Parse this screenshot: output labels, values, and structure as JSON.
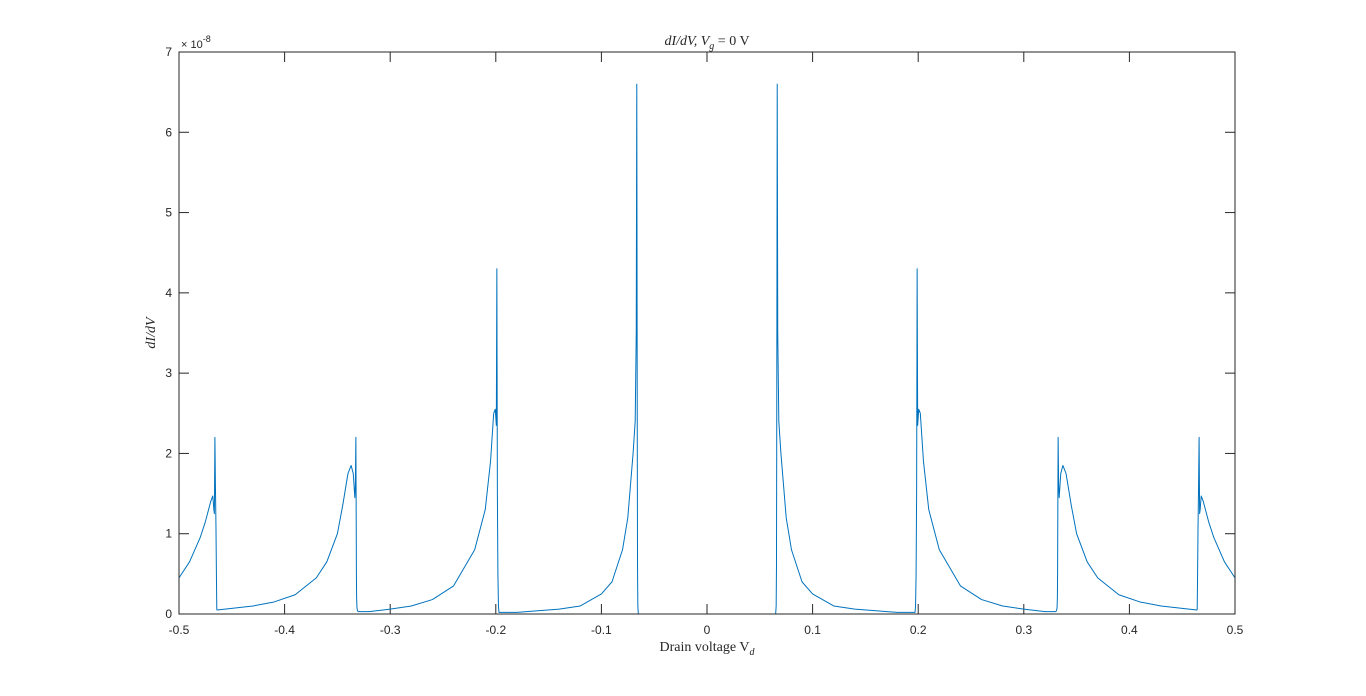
{
  "chart_data": {
    "type": "line",
    "title_parts": {
      "main": "dI/dV, V",
      "sub": "g",
      "tail": " = 0 V"
    },
    "xlabel_parts": {
      "main": "Drain voltage V",
      "sub": "d"
    },
    "ylabel": "dI/dV",
    "y_exponent_label": {
      "base": "× 10",
      "power": "-8"
    },
    "xlim": [
      -0.5,
      0.5
    ],
    "ylim": [
      0,
      7
    ],
    "y_scale_factor": 1e-08,
    "xticks": [
      -0.5,
      -0.4,
      -0.3,
      -0.2,
      -0.1,
      0,
      0.1,
      0.2,
      0.3,
      0.4,
      0.5
    ],
    "xtick_labels": [
      "-0.5",
      "-0.4",
      "-0.3",
      "-0.2",
      "-0.1",
      "0",
      "0.1",
      "0.2",
      "0.3",
      "0.4",
      "0.5"
    ],
    "yticks": [
      0,
      1,
      2,
      3,
      4,
      5,
      6,
      7
    ],
    "ytick_labels": [
      "0",
      "1",
      "2",
      "3",
      "4",
      "5",
      "6",
      "7"
    ],
    "grid": false,
    "box": true,
    "line_color": "#0072bd",
    "series": [
      {
        "x": [
          -0.5,
          -0.49,
          -0.48,
          -0.475,
          -0.47,
          -0.468,
          -0.467,
          -0.4665,
          -0.466,
          -0.4655,
          -0.465,
          -0.4645,
          -0.4642,
          -0.464,
          -0.45,
          -0.43,
          -0.41,
          -0.39,
          -0.37,
          -0.36,
          -0.35,
          -0.345,
          -0.34,
          -0.337,
          -0.335,
          -0.3335,
          -0.333,
          -0.3325,
          -0.3322,
          -0.332,
          -0.3318,
          -0.3315,
          -0.331,
          -0.33,
          -0.32,
          -0.3,
          -0.28,
          -0.26,
          -0.24,
          -0.22,
          -0.21,
          -0.205,
          -0.202,
          -0.2005,
          -0.1995,
          -0.199,
          -0.1985,
          -0.198,
          -0.1975,
          -0.197,
          -0.18,
          -0.16,
          -0.14,
          -0.12,
          -0.1,
          -0.09,
          -0.08,
          -0.075,
          -0.07,
          -0.068,
          -0.067,
          -0.0665,
          -0.066,
          -0.0658,
          -0.0655,
          -0.065,
          0,
          0.065,
          0.0655,
          0.0658,
          0.066,
          0.0665,
          0.067,
          0.068,
          0.07,
          0.075,
          0.08,
          0.09,
          0.1,
          0.12,
          0.14,
          0.16,
          0.18,
          0.197,
          0.1975,
          0.198,
          0.1985,
          0.199,
          0.1995,
          0.2005,
          0.202,
          0.205,
          0.21,
          0.22,
          0.24,
          0.26,
          0.28,
          0.3,
          0.32,
          0.33,
          0.331,
          0.3315,
          0.3318,
          0.332,
          0.3322,
          0.3325,
          0.333,
          0.3335,
          0.335,
          0.337,
          0.34,
          0.345,
          0.35,
          0.36,
          0.37,
          0.39,
          0.41,
          0.43,
          0.45,
          0.464,
          0.4642,
          0.4645,
          0.465,
          0.4655,
          0.466,
          0.4665,
          0.467,
          0.468,
          0.47,
          0.475,
          0.48,
          0.49,
          0.5
        ],
        "y": [
          0.45,
          0.65,
          0.95,
          1.15,
          1.4,
          1.47,
          1.3,
          1.25,
          2.2,
          1.6,
          1.1,
          0.4,
          0.06,
          0.05,
          0.07,
          0.1,
          0.15,
          0.24,
          0.45,
          0.65,
          1.0,
          1.35,
          1.75,
          1.85,
          1.75,
          1.45,
          1.6,
          2.2,
          1.2,
          0.5,
          0.2,
          0.08,
          0.04,
          0.03,
          0.03,
          0.06,
          0.1,
          0.18,
          0.35,
          0.8,
          1.3,
          1.9,
          2.5,
          2.55,
          2.35,
          4.3,
          1.5,
          0.5,
          0.1,
          0.02,
          0.02,
          0.04,
          0.06,
          0.1,
          0.25,
          0.4,
          0.8,
          1.2,
          2.0,
          2.4,
          3.5,
          6.6,
          2.0,
          0.6,
          0.1,
          0.0,
          0.0,
          0.0,
          0.1,
          0.6,
          2.0,
          6.6,
          3.5,
          2.4,
          2.0,
          1.2,
          0.8,
          0.4,
          0.25,
          0.1,
          0.06,
          0.04,
          0.02,
          0.02,
          0.1,
          0.5,
          1.5,
          4.3,
          2.35,
          2.55,
          2.5,
          1.9,
          1.3,
          0.8,
          0.35,
          0.18,
          0.1,
          0.06,
          0.03,
          0.03,
          0.04,
          0.08,
          0.2,
          0.5,
          1.2,
          2.2,
          1.6,
          1.45,
          1.75,
          1.85,
          1.75,
          1.35,
          1.0,
          0.65,
          0.45,
          0.24,
          0.15,
          0.1,
          0.07,
          0.05,
          0.06,
          0.4,
          1.1,
          1.6,
          2.2,
          1.25,
          1.3,
          1.47,
          1.4,
          1.15,
          0.95,
          0.65,
          0.45
        ]
      }
    ]
  }
}
